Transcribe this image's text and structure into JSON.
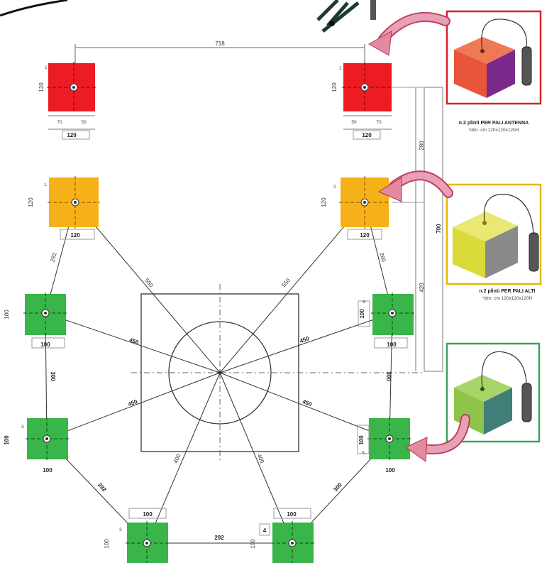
{
  "dimensions": {
    "top_span": "718",
    "width_120": "120",
    "height_120": "120",
    "offset_70": "70",
    "offset_50": "50",
    "width_100": "100",
    "height_100": "100",
    "vertical_700": "700",
    "vertical_280": "280",
    "vertical_420": "420",
    "diag_550": "550",
    "diag_450": "450",
    "diag_400": "400",
    "edge_292": "292",
    "edge_300": "300",
    "edge_260": "260",
    "bottom_292": "292"
  },
  "pile_numbers": [
    "1",
    "2",
    "3",
    "4",
    "5",
    "6",
    "1",
    "2"
  ],
  "callouts": [
    {
      "caption": "n.2 plinti PER PALI ANTENNA",
      "subcaption": "*dim. cm 120x120x120H",
      "border": "#d9202a",
      "top": "#ee7a55",
      "left": "#e8553a",
      "right": "#7b2a8c"
    },
    {
      "caption": "n.2 plinti PER PALI ALTI",
      "subcaption": "*dim. cm 120x120x120H",
      "border": "#e8b800",
      "top": "#e8e872",
      "left": "#dada3a",
      "right": "#8a8a8a"
    },
    {
      "caption": "",
      "subcaption": "",
      "border": "#3aa35a",
      "top": "#a8d46a",
      "left": "#8ec44a",
      "right": "#3f7f78"
    }
  ],
  "colors": {
    "red_block": "#ed1c24",
    "orange_block": "#f7b118",
    "green_block": "#39b54a",
    "arrow": "#e38aa0",
    "line": "#333333"
  }
}
